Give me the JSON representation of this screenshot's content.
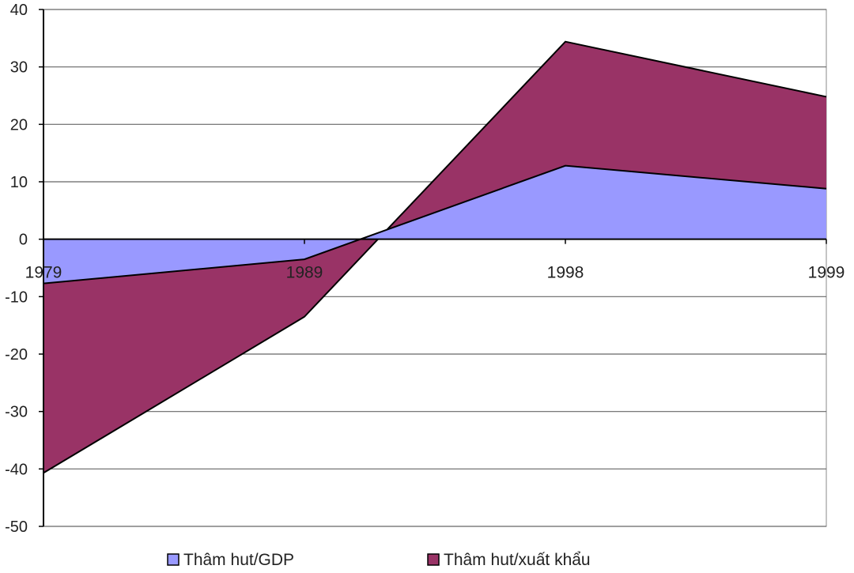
{
  "chart_data": {
    "type": "area",
    "title": "",
    "xlabel": "",
    "ylabel": "",
    "categories": [
      "1979",
      "1989",
      "1998",
      "1999"
    ],
    "ylim": [
      -50,
      40
    ],
    "yticks": [
      40,
      30,
      20,
      10,
      0,
      -10,
      -20,
      -30,
      -40,
      -50
    ],
    "grid": true,
    "legend_position": "bottom",
    "series": [
      {
        "name": "Thâm hut/xuất khẩu",
        "values": [
          -40.7,
          -13.5,
          34.4,
          24.8
        ],
        "color": "#993366"
      },
      {
        "name": "Thâm hut/GDP",
        "values": [
          -7.7,
          -3.5,
          12.8,
          8.8
        ],
        "color": "#9999FF"
      }
    ]
  }
}
